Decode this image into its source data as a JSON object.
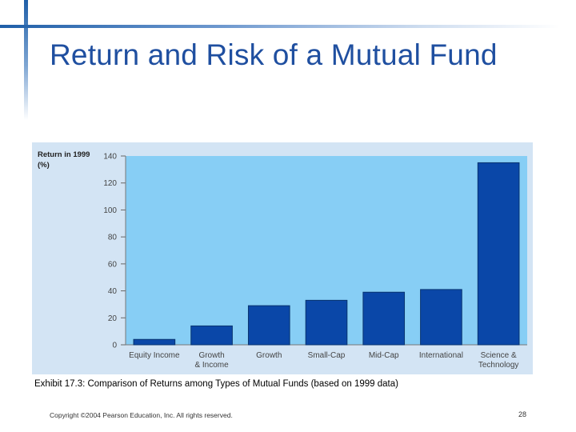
{
  "slide": {
    "title": "Return and Risk of a Mutual Fund",
    "caption": "Exhibit 17.3: Comparison of Returns among Types of Mutual Funds (based on 1999 data)",
    "copyright": "Copyright ©2004 Pearson Education, Inc. All rights reserved.",
    "page_number": "28"
  },
  "colors": {
    "accent": "#1f5fa8",
    "title": "#1f4fa0",
    "plot_bg": "#87cef5",
    "chart_bg": "#d3e4f4",
    "bar": "#0a47a8",
    "bar_edge": "#08346f"
  },
  "chart_data": {
    "type": "bar",
    "title": "",
    "ylabel": "Return in 1999 (%)",
    "ylabel_lines": [
      "Return in 1999",
      "(%)"
    ],
    "xlabel": "",
    "ylim": [
      0,
      140
    ],
    "yticks": [
      0,
      20,
      40,
      60,
      80,
      100,
      120,
      140
    ],
    "grid": false,
    "categories": [
      "Equity Income",
      "Growth & Income",
      "Growth",
      "Small-Cap",
      "Mid-Cap",
      "International",
      "Science & Technology"
    ],
    "category_lines": [
      [
        "Equity Income"
      ],
      [
        "Growth",
        "& Income"
      ],
      [
        "Growth"
      ],
      [
        "Small-Cap"
      ],
      [
        "Mid-Cap"
      ],
      [
        "International"
      ],
      [
        "Science &",
        "Technology"
      ]
    ],
    "values": [
      4,
      14,
      29,
      33,
      39,
      41,
      135
    ]
  }
}
